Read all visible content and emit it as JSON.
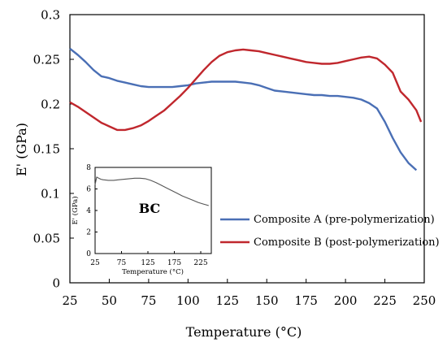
{
  "chart_data": [
    {
      "type": "line",
      "xlabel": "Temperature (°C)",
      "ylabel": "E' (GPa)",
      "xlim": [
        25,
        250
      ],
      "ylim": [
        0,
        0.3
      ],
      "xticks": [
        "25",
        "50",
        "75",
        "100",
        "125",
        "150",
        "175",
        "200",
        "225",
        "250"
      ],
      "yticks": [
        "0",
        "0.05",
        "0.1",
        "0.15",
        "0.2",
        "0.25",
        "0.3"
      ],
      "grid": false,
      "legend_position": "center-right",
      "series": [
        {
          "name": "Composite A (pre-polymerization)",
          "color": "#4a6fb5",
          "x": [
            25,
            30,
            35,
            40,
            45,
            50,
            55,
            60,
            65,
            70,
            75,
            80,
            85,
            90,
            95,
            100,
            105,
            110,
            115,
            120,
            125,
            130,
            135,
            140,
            145,
            150,
            155,
            160,
            165,
            170,
            175,
            180,
            185,
            190,
            195,
            200,
            205,
            210,
            215,
            220,
            225,
            230,
            235,
            240,
            245
          ],
          "y": [
            0.262,
            0.255,
            0.247,
            0.238,
            0.231,
            0.229,
            0.226,
            0.224,
            0.222,
            0.22,
            0.219,
            0.219,
            0.219,
            0.219,
            0.22,
            0.221,
            0.223,
            0.224,
            0.225,
            0.225,
            0.225,
            0.225,
            0.224,
            0.223,
            0.221,
            0.218,
            0.215,
            0.214,
            0.213,
            0.212,
            0.211,
            0.21,
            0.21,
            0.209,
            0.209,
            0.208,
            0.207,
            0.205,
            0.201,
            0.195,
            0.18,
            0.162,
            0.146,
            0.134,
            0.126
          ]
        },
        {
          "name": "Composite B (post-polymerization)",
          "color": "#c0272d",
          "x": [
            25,
            30,
            35,
            40,
            45,
            50,
            55,
            60,
            65,
            70,
            75,
            80,
            85,
            90,
            95,
            100,
            105,
            110,
            115,
            120,
            125,
            130,
            135,
            140,
            145,
            150,
            155,
            160,
            165,
            170,
            175,
            180,
            185,
            190,
            195,
            200,
            205,
            210,
            215,
            220,
            225,
            230,
            235,
            240,
            245,
            248
          ],
          "y": [
            0.202,
            0.197,
            0.191,
            0.185,
            0.179,
            0.175,
            0.171,
            0.171,
            0.173,
            0.176,
            0.181,
            0.187,
            0.193,
            0.201,
            0.209,
            0.218,
            0.228,
            0.238,
            0.247,
            0.254,
            0.258,
            0.26,
            0.261,
            0.26,
            0.259,
            0.257,
            0.255,
            0.253,
            0.251,
            0.249,
            0.247,
            0.246,
            0.245,
            0.245,
            0.246,
            0.248,
            0.25,
            0.252,
            0.253,
            0.251,
            0.244,
            0.235,
            0.214,
            0.205,
            0.193,
            0.18
          ]
        }
      ]
    },
    {
      "type": "line",
      "annotation": "BC",
      "xlabel": "Temperature (°C)",
      "ylabel": "E' (GPa)",
      "xlim": [
        25,
        245
      ],
      "ylim": [
        0,
        8
      ],
      "xticks": [
        "25",
        "75",
        "125",
        "175",
        "225"
      ],
      "yticks": [
        "0",
        "2",
        "4",
        "6",
        "8"
      ],
      "grid": false,
      "series": [
        {
          "color": "#555555",
          "x": [
            25,
            28,
            32,
            36,
            40,
            50,
            60,
            70,
            80,
            90,
            100,
            110,
            120,
            130,
            140,
            150,
            160,
            170,
            180,
            190,
            200,
            210,
            220,
            230,
            240
          ],
          "y": [
            6.4,
            7.1,
            7.0,
            6.9,
            6.85,
            6.8,
            6.8,
            6.85,
            6.9,
            6.95,
            7.0,
            7.0,
            6.95,
            6.8,
            6.6,
            6.35,
            6.1,
            5.85,
            5.6,
            5.35,
            5.15,
            4.95,
            4.75,
            4.6,
            4.45
          ]
        }
      ]
    }
  ]
}
